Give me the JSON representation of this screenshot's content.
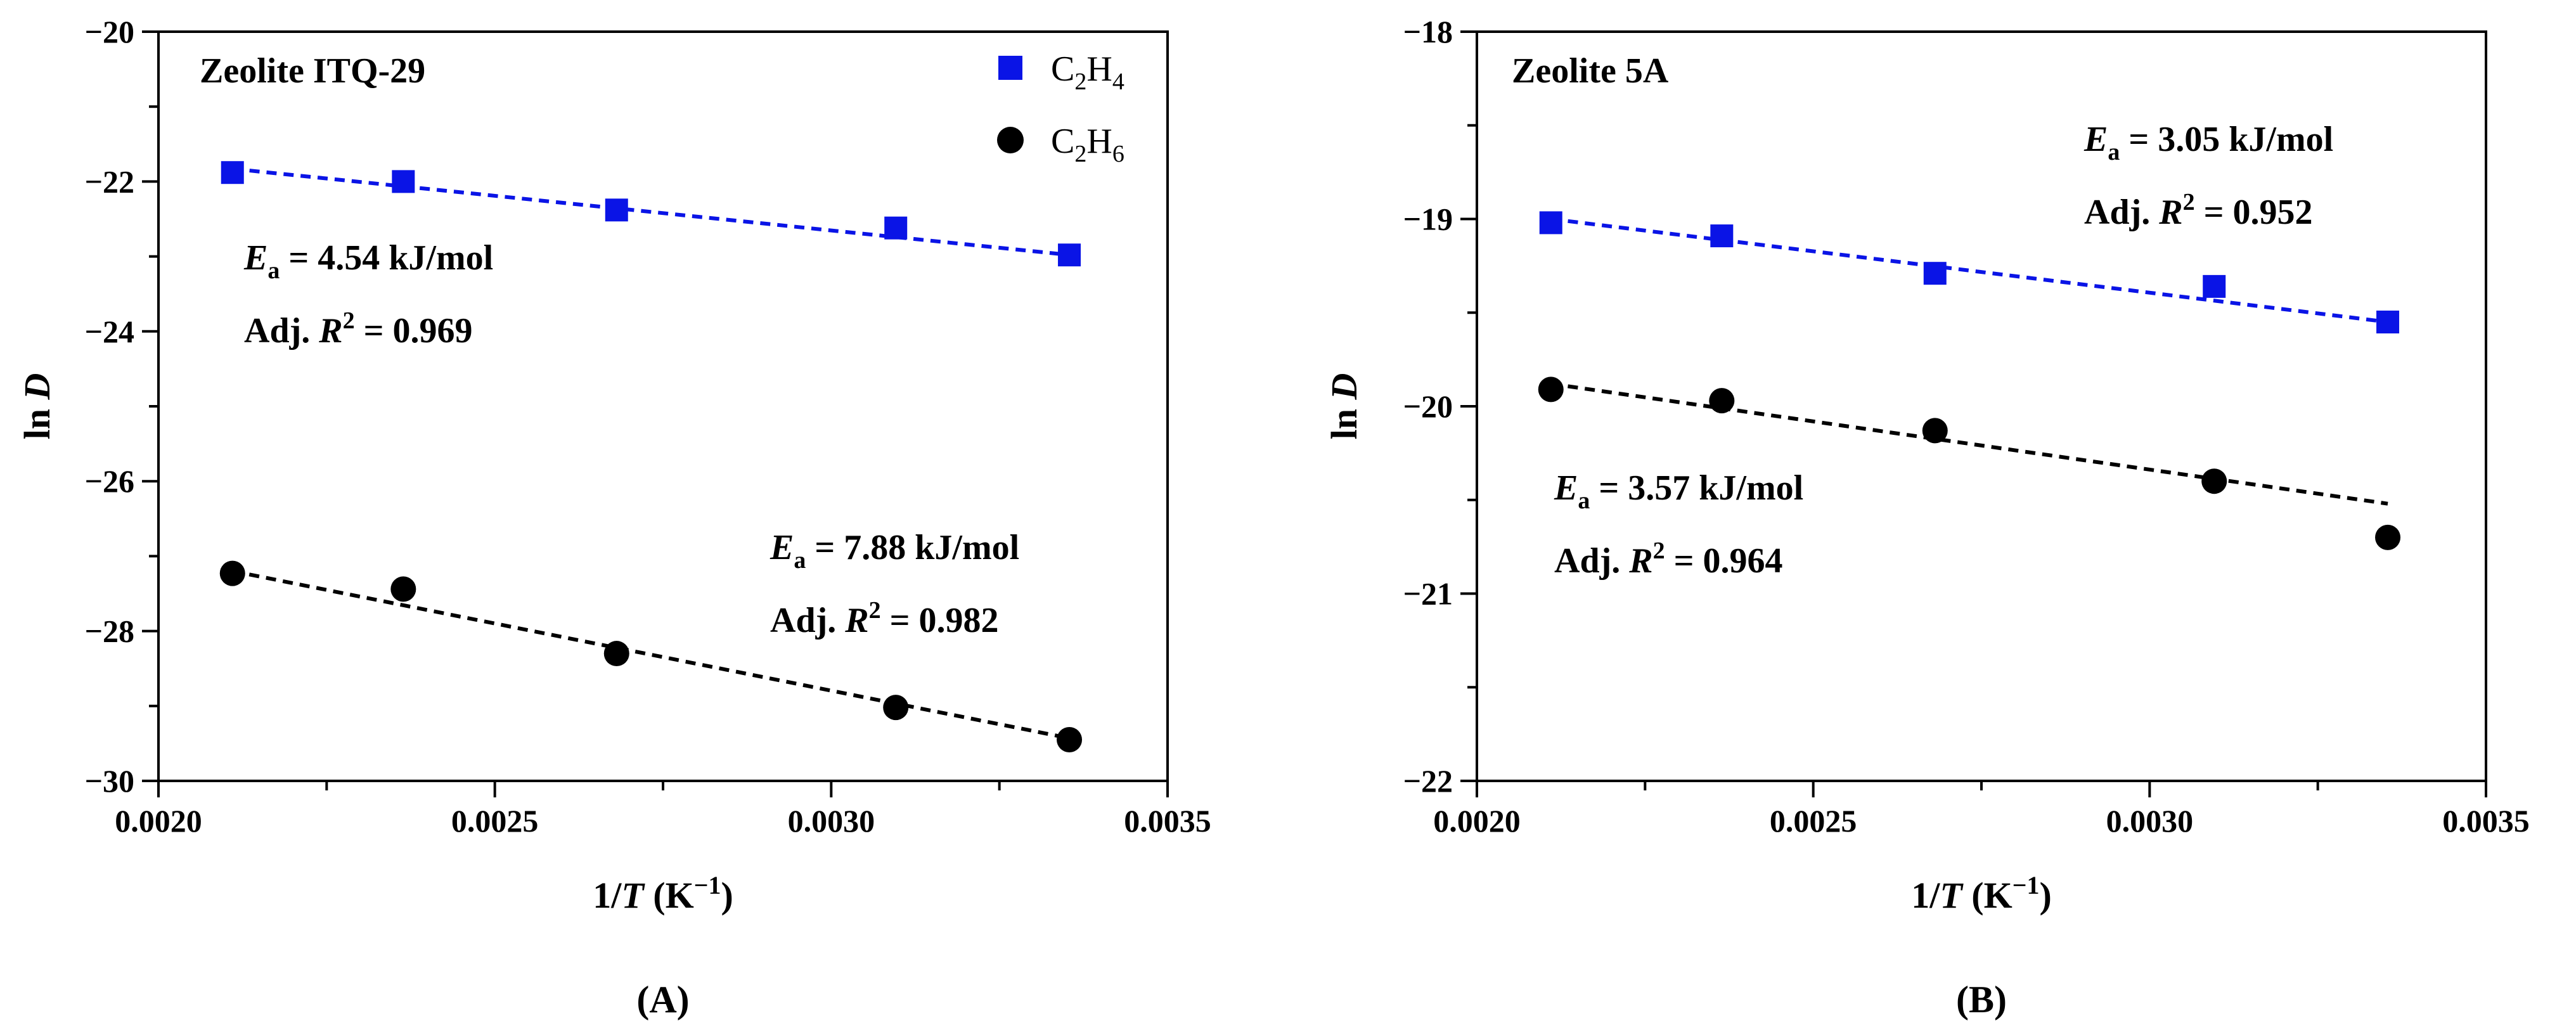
{
  "chart_data": [
    {
      "type": "scatter",
      "panel_label": "(A)",
      "title": "Zeolite ITQ-29",
      "xlabel": {
        "main": "1/",
        "italic": "T",
        "unit": " (K",
        "sup": "−1",
        "close": ")"
      },
      "ylabel": {
        "main": "ln ",
        "italic": "D"
      },
      "xlim": [
        0.002,
        0.0035
      ],
      "ylim": [
        -30,
        -20
      ],
      "xticks": [
        0.002,
        0.0025,
        0.003,
        0.0035
      ],
      "xtick_labels": [
        "0.0020",
        "0.0025",
        "0.0030",
        "0.0035"
      ],
      "yticks": [
        -30,
        -28,
        -26,
        -24,
        -22,
        -20
      ],
      "ytick_labels": [
        "−30",
        "−28",
        "−26",
        "−24",
        "−22",
        "−20"
      ],
      "legend": [
        {
          "label": "C2H4",
          "base": "C",
          "sub1": "2",
          "mid": "H",
          "sub2": "4",
          "marker": "square",
          "color": "#0a14e6"
        },
        {
          "label": "C2H6",
          "base": "C",
          "sub1": "2",
          "mid": "H",
          "sub2": "6",
          "marker": "circle",
          "color": "#000000"
        }
      ],
      "series": [
        {
          "name": "C2H4",
          "marker": "square",
          "color": "#0a14e6",
          "x": [
            0.00211,
            0.002364,
            0.002681,
            0.003096,
            0.003354
          ],
          "y": [
            -21.88,
            -22.0,
            -22.38,
            -22.62,
            -22.98
          ],
          "fit": {
            "x": [
              0.00211,
              0.003354
            ],
            "y": [
              -21.83,
              -22.98
            ]
          },
          "annotation": {
            "ea_sym": "E",
            "ea_sub": "a",
            "ea_text": " = 4.54 kJ/mol",
            "r2_pre": "Adj. ",
            "r2_sym": "R",
            "r2_sup": "2",
            "r2_text": " = 0.969"
          }
        },
        {
          "name": "C2H6",
          "marker": "circle",
          "color": "#000000",
          "x": [
            0.00211,
            0.002364,
            0.002681,
            0.003096,
            0.003354
          ],
          "y": [
            -27.23,
            -27.44,
            -28.3,
            -29.02,
            -29.45
          ],
          "fit": {
            "x": [
              0.00211,
              0.003354
            ],
            "y": [
              -27.2,
              -29.43
            ]
          },
          "annotation": {
            "ea_sym": "E",
            "ea_sub": "a",
            "ea_text": " = 7.88 kJ/mol",
            "r2_pre": "Adj. ",
            "r2_sym": "R",
            "r2_sup": "2",
            "r2_text": " = 0.982"
          }
        }
      ]
    },
    {
      "type": "scatter",
      "panel_label": "(B)",
      "title": "Zeolite 5A",
      "xlabel": {
        "main": "1/",
        "italic": "T",
        "unit": " (K",
        "sup": "−1",
        "close": ")"
      },
      "ylabel": {
        "main": "ln ",
        "italic": "D"
      },
      "xlim": [
        0.002,
        0.0035
      ],
      "ylim": [
        -22,
        -18
      ],
      "xticks": [
        0.002,
        0.0025,
        0.003,
        0.0035
      ],
      "xtick_labels": [
        "0.0020",
        "0.0025",
        "0.0030",
        "0.0035"
      ],
      "yticks": [
        -22,
        -21,
        -20,
        -19,
        -18
      ],
      "ytick_labels": [
        "−22",
        "−21",
        "−20",
        "−19",
        "−18"
      ],
      "legend": [],
      "series": [
        {
          "name": "C2H4",
          "marker": "square",
          "color": "#0a14e6",
          "x": [
            0.00211,
            0.002364,
            0.002681,
            0.003096,
            0.003354
          ],
          "y": [
            -19.02,
            -19.09,
            -19.29,
            -19.36,
            -19.55
          ],
          "fit": {
            "x": [
              0.00211,
              0.003354
            ],
            "y": [
              -19.0,
              -19.55
            ]
          },
          "annotation": {
            "ea_sym": "E",
            "ea_sub": "a",
            "ea_text": " = 3.05 kJ/mol",
            "r2_pre": "Adj. ",
            "r2_sym": "R",
            "r2_sup": "2",
            "r2_text": " = 0.952"
          }
        },
        {
          "name": "C2H6",
          "marker": "circle",
          "color": "#000000",
          "x": [
            0.00211,
            0.002364,
            0.002681,
            0.003096,
            0.003354
          ],
          "y": [
            -19.91,
            -19.97,
            -20.13,
            -20.4,
            -20.7
          ],
          "fit": {
            "x": [
              0.00211,
              0.003354
            ],
            "y": [
              -19.88,
              -20.52
            ]
          },
          "annotation": {
            "ea_sym": "E",
            "ea_sub": "a",
            "ea_text": " = 3.57 kJ/mol",
            "r2_pre": "Adj. ",
            "r2_sym": "R",
            "r2_sup": "2",
            "r2_text": " = 0.964"
          }
        }
      ]
    }
  ]
}
